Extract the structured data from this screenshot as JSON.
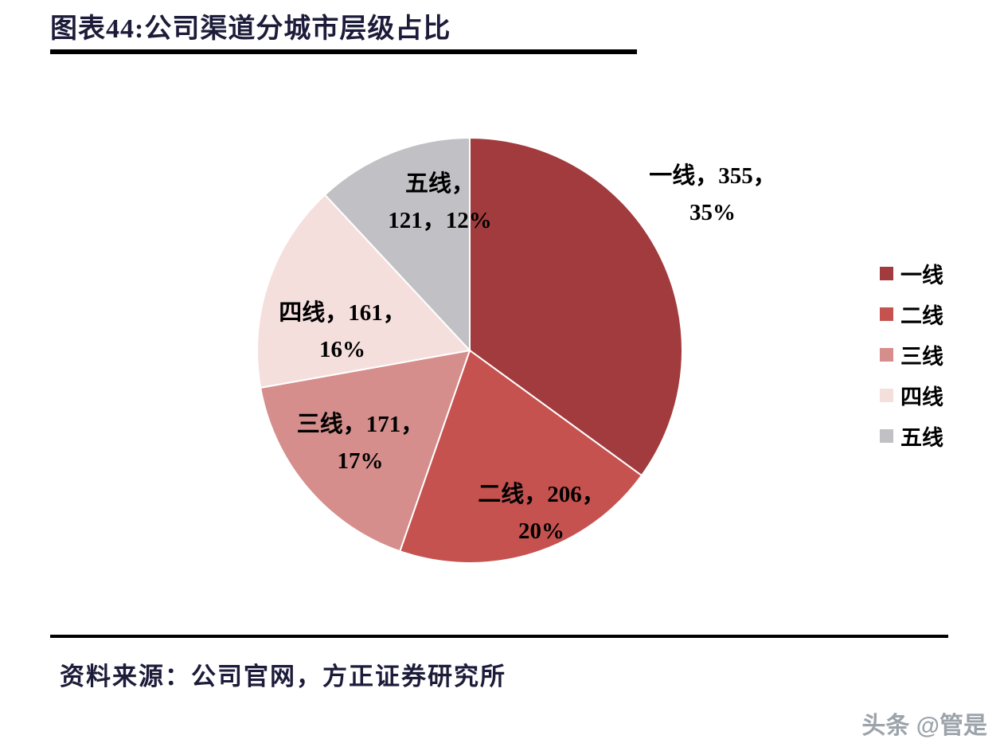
{
  "title": "图表44:公司渠道分城市层级占比",
  "source": "资料来源：公司官网，方正证券研究所",
  "watermark": "头条 @管是",
  "chart_data": {
    "type": "pie",
    "title": "公司渠道分城市层级占比",
    "start_angle_deg": 0,
    "direction": "clockwise",
    "legend_position": "right",
    "slices": [
      {
        "label": "一线",
        "value": 355,
        "pct": "35%",
        "color": "#A23B3D"
      },
      {
        "label": "二线",
        "value": 206,
        "pct": "20%",
        "color": "#C5524F"
      },
      {
        "label": "三线",
        "value": 171,
        "pct": "17%",
        "color": "#D58E8B"
      },
      {
        "label": "四线",
        "value": 161,
        "pct": "16%",
        "color": "#F5DFDD"
      },
      {
        "label": "五线",
        "value": 121,
        "pct": "12%",
        "color": "#C1C1C5"
      }
    ],
    "legend": [
      "一线",
      "二线",
      "三线",
      "四线",
      "五线"
    ],
    "data_labels": [
      {
        "line1": "一线，355，",
        "line2": "35%"
      },
      {
        "line1": "二线，206，",
        "line2": "20%"
      },
      {
        "line1": "三线，171，",
        "line2": "17%"
      },
      {
        "line1": "四线，161，",
        "line2": "16%"
      },
      {
        "line1": "五线，",
        "line2": "121，12%"
      }
    ]
  }
}
